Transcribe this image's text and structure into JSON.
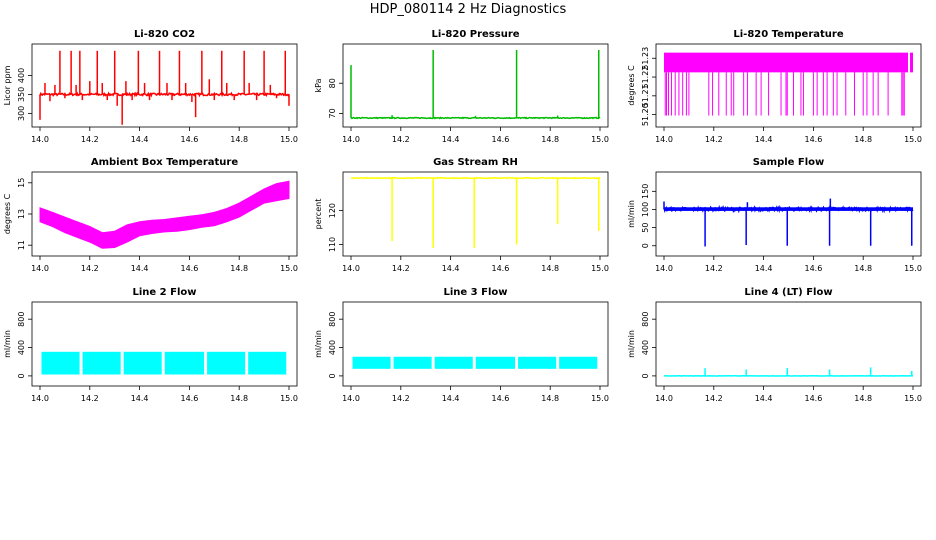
{
  "page_title": "HDP_080114  2 Hz Diagnostics",
  "chart_data": [
    {
      "type": "line",
      "title": "Li-820 CO2",
      "ylabel": "Licor ppm",
      "color": "#ff0000",
      "xlim": [
        14.0,
        15.0
      ],
      "ylim": [
        272,
        475
      ],
      "yticks": [
        300,
        350,
        400
      ],
      "xticks": [
        "14.0",
        "14.2",
        "14.4",
        "14.6",
        "14.8",
        "15.0"
      ],
      "baseline": 350,
      "noise": 3,
      "band": false,
      "spikes": [
        {
          "x": 14.0,
          "y": 283
        },
        {
          "x": 14.02,
          "y": 380
        },
        {
          "x": 14.04,
          "y": 332
        },
        {
          "x": 14.06,
          "y": 375
        },
        {
          "x": 14.08,
          "y": 465
        },
        {
          "x": 14.1,
          "y": 340
        },
        {
          "x": 14.125,
          "y": 465
        },
        {
          "x": 14.145,
          "y": 375
        },
        {
          "x": 14.16,
          "y": 465
        },
        {
          "x": 14.17,
          "y": 335
        },
        {
          "x": 14.2,
          "y": 385
        },
        {
          "x": 14.23,
          "y": 465
        },
        {
          "x": 14.25,
          "y": 380
        },
        {
          "x": 14.27,
          "y": 335
        },
        {
          "x": 14.3,
          "y": 465
        },
        {
          "x": 14.31,
          "y": 320
        },
        {
          "x": 14.33,
          "y": 270
        },
        {
          "x": 14.345,
          "y": 385
        },
        {
          "x": 14.37,
          "y": 335
        },
        {
          "x": 14.395,
          "y": 465
        },
        {
          "x": 14.42,
          "y": 380
        },
        {
          "x": 14.44,
          "y": 335
        },
        {
          "x": 14.48,
          "y": 465
        },
        {
          "x": 14.51,
          "y": 380
        },
        {
          "x": 14.53,
          "y": 335
        },
        {
          "x": 14.56,
          "y": 465
        },
        {
          "x": 14.585,
          "y": 380
        },
        {
          "x": 14.61,
          "y": 330
        },
        {
          "x": 14.625,
          "y": 290
        },
        {
          "x": 14.65,
          "y": 465
        },
        {
          "x": 14.68,
          "y": 390
        },
        {
          "x": 14.7,
          "y": 335
        },
        {
          "x": 14.73,
          "y": 465
        },
        {
          "x": 14.75,
          "y": 380
        },
        {
          "x": 14.78,
          "y": 335
        },
        {
          "x": 14.82,
          "y": 465
        },
        {
          "x": 14.84,
          "y": 380
        },
        {
          "x": 14.87,
          "y": 335
        },
        {
          "x": 14.9,
          "y": 465
        },
        {
          "x": 14.925,
          "y": 375
        },
        {
          "x": 14.95,
          "y": 340
        },
        {
          "x": 14.985,
          "y": 465
        },
        {
          "x": 15.0,
          "y": 320
        }
      ]
    },
    {
      "type": "line",
      "title": "Li-820 Pressure",
      "ylabel": "kPa",
      "color": "#00bb00",
      "xlim": [
        14.0,
        15.0
      ],
      "ylim": [
        66.5,
        92
      ],
      "yticks": [
        70,
        80
      ],
      "xticks": [
        "14.0",
        "14.2",
        "14.4",
        "14.6",
        "14.8",
        "15.0"
      ],
      "baseline": 68.5,
      "noise": 0.15,
      "band": false,
      "spikes": [
        {
          "x": 14.0,
          "y": 86
        },
        {
          "x": 14.165,
          "y": 69.4
        },
        {
          "x": 14.33,
          "y": 91
        },
        {
          "x": 14.5,
          "y": 69.2
        },
        {
          "x": 14.665,
          "y": 91
        },
        {
          "x": 14.83,
          "y": 69.3
        },
        {
          "x": 14.995,
          "y": 91
        }
      ]
    },
    {
      "type": "line",
      "title": "Li-820 Temperature",
      "ylabel": "degrees C",
      "color": "#ff00ff",
      "xlim": [
        14.0,
        15.0
      ],
      "ylim": [
        51.195,
        51.236
      ],
      "yticks": [
        51.2,
        51.21,
        51.22,
        51.23
      ],
      "xticks": [
        "14.0",
        "14.2",
        "14.4",
        "14.6",
        "14.8",
        "15.0"
      ],
      "band_low": 51.2225,
      "band_high": 51.233,
      "band_end_x": 14.98,
      "dropouts": [
        14.005,
        14.01,
        14.018,
        14.03,
        14.045,
        14.06,
        14.075,
        14.09,
        14.1,
        14.18,
        14.195,
        14.22,
        14.25,
        14.27,
        14.28,
        14.32,
        14.335,
        14.37,
        14.39,
        14.42,
        14.47,
        14.49,
        14.495,
        14.52,
        14.55,
        14.56,
        14.6,
        14.615,
        14.64,
        14.655,
        14.68,
        14.695,
        14.73,
        14.765,
        14.8,
        14.815,
        14.84,
        14.86,
        14.9,
        14.955,
        14.96,
        14.965
      ]
    },
    {
      "type": "area",
      "title": "Ambient Box Temperature",
      "ylabel": "degrees C",
      "color": "#ff00ff",
      "xlim": [
        14.0,
        15.0
      ],
      "ylim": [
        10.5,
        15.5
      ],
      "yticks": [
        11,
        13,
        15
      ],
      "xticks": [
        "14.0",
        "14.2",
        "14.4",
        "14.6",
        "14.8",
        "15.0"
      ],
      "x": [
        14.0,
        14.05,
        14.1,
        14.15,
        14.2,
        14.25,
        14.3,
        14.35,
        14.4,
        14.45,
        14.5,
        14.55,
        14.6,
        14.65,
        14.7,
        14.75,
        14.8,
        14.85,
        14.9,
        14.95,
        15.0
      ],
      "upper": [
        13.4,
        13.1,
        12.8,
        12.5,
        12.2,
        11.8,
        11.9,
        12.3,
        12.5,
        12.6,
        12.65,
        12.75,
        12.85,
        12.95,
        13.1,
        13.35,
        13.7,
        14.15,
        14.6,
        14.95,
        15.1
      ],
      "lower": [
        12.5,
        12.2,
        11.8,
        11.5,
        11.2,
        10.8,
        10.85,
        11.2,
        11.6,
        11.75,
        11.85,
        11.9,
        12.0,
        12.15,
        12.25,
        12.5,
        12.8,
        13.25,
        13.7,
        13.85,
        14.0
      ]
    },
    {
      "type": "line",
      "title": "Gas Stream RH",
      "ylabel": "percent",
      "color": "#ffff00",
      "xlim": [
        14.0,
        15.0
      ],
      "ylim": [
        107.5,
        130.5
      ],
      "yticks": [
        110,
        120
      ],
      "xticks": [
        "14.0",
        "14.2",
        "14.4",
        "14.6",
        "14.8",
        "15.0"
      ],
      "baseline": 129.6,
      "noise": 0.1,
      "band": false,
      "spikes": [
        {
          "x": 14.165,
          "y": 111
        },
        {
          "x": 14.33,
          "y": 109
        },
        {
          "x": 14.495,
          "y": 109
        },
        {
          "x": 14.665,
          "y": 110
        },
        {
          "x": 14.83,
          "y": 116
        },
        {
          "x": 14.995,
          "y": 114
        }
      ]
    },
    {
      "type": "line",
      "title": "Sample Flow",
      "ylabel": "ml/min",
      "color": "#0000ff",
      "xlim": [
        14.0,
        15.0
      ],
      "ylim": [
        -20,
        195
      ],
      "yticks": [
        0,
        50,
        100,
        150
      ],
      "xticks": [
        "14.0",
        "14.2",
        "14.4",
        "14.6",
        "14.8",
        "15.0"
      ],
      "baseline": 101,
      "noise": 5,
      "band": true,
      "spikes": [
        {
          "x": 14.0,
          "y": 122
        },
        {
          "x": 14.165,
          "y": -2
        },
        {
          "x": 14.33,
          "y": 2
        },
        {
          "x": 14.335,
          "y": 120
        },
        {
          "x": 14.495,
          "y": 0
        },
        {
          "x": 14.665,
          "y": 0
        },
        {
          "x": 14.668,
          "y": 130
        },
        {
          "x": 14.83,
          "y": 0
        },
        {
          "x": 14.995,
          "y": 0
        }
      ]
    },
    {
      "type": "area",
      "title": "Line 2 Flow",
      "ylabel": "ml/min",
      "color": "#00ffff",
      "xlim": [
        14.0,
        15.0
      ],
      "ylim": [
        -100,
        1000
      ],
      "yticks": [
        0,
        400,
        800
      ],
      "xticks": [
        "14.0",
        "14.2",
        "14.4",
        "14.6",
        "14.8",
        "15.0"
      ],
      "low": 20,
      "high": 340,
      "gaps": [
        14.0,
        14.165,
        14.33,
        14.495,
        14.665,
        14.83,
        14.995
      ]
    },
    {
      "type": "area",
      "title": "Line 3 Flow",
      "ylabel": "ml/min",
      "color": "#00ffff",
      "xlim": [
        14.0,
        15.0
      ],
      "ylim": [
        -100,
        1000
      ],
      "yticks": [
        0,
        400,
        800
      ],
      "xticks": [
        "14.0",
        "14.2",
        "14.4",
        "14.6",
        "14.8",
        "15.0"
      ],
      "low": 100,
      "high": 270,
      "gaps": [
        14.0,
        14.165,
        14.33,
        14.495,
        14.665,
        14.83,
        14.995
      ]
    },
    {
      "type": "line",
      "title": "Line 4 (LT) Flow",
      "ylabel": "ml/min",
      "color": "#00ffff",
      "xlim": [
        14.0,
        15.0
      ],
      "ylim": [
        -100,
        1000
      ],
      "yticks": [
        0,
        400,
        800
      ],
      "xticks": [
        "14.0",
        "14.2",
        "14.4",
        "14.6",
        "14.8",
        "15.0"
      ],
      "baseline": 0,
      "noise": 2,
      "band": false,
      "spikes": [
        {
          "x": 14.165,
          "y": 110
        },
        {
          "x": 14.33,
          "y": 90
        },
        {
          "x": 14.495,
          "y": 110
        },
        {
          "x": 14.665,
          "y": 90
        },
        {
          "x": 14.83,
          "y": 120
        },
        {
          "x": 14.995,
          "y": 70
        }
      ]
    }
  ]
}
